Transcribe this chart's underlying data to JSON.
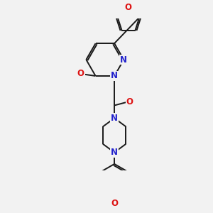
{
  "background_color": "#f2f2f2",
  "bond_color": "#1a1a1a",
  "atom_colors": {
    "N": "#2222cc",
    "O": "#dd1111",
    "C": "#1a1a1a"
  },
  "figsize": [
    3.0,
    3.0
  ],
  "dpi": 100
}
